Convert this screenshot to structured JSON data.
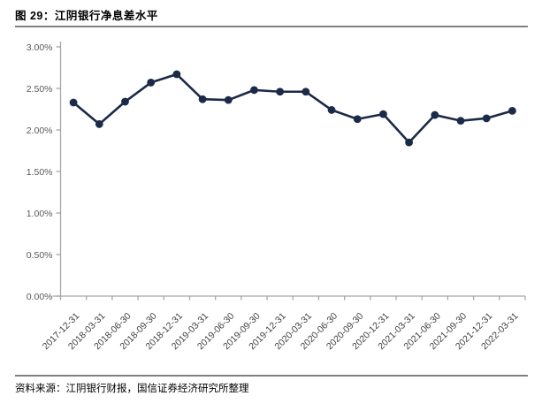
{
  "header": {
    "title": "图 29：江阴银行净息差水平"
  },
  "footer": {
    "source": "资料来源：江阴银行财报，国信证券经济研究所整理"
  },
  "chart_data": {
    "type": "line",
    "title": "江阴银行净息差水平",
    "xlabel": "",
    "ylabel": "",
    "unit": "%",
    "categories": [
      "2017-12-31",
      "2018-03-31",
      "2018-06-30",
      "2018-09-30",
      "2018-12-31",
      "2019-03-31",
      "2019-06-30",
      "2019-09-30",
      "2019-12-31",
      "2020-03-31",
      "2020-06-30",
      "2020-09-30",
      "2020-12-31",
      "2021-03-31",
      "2021-06-30",
      "2021-09-30",
      "2021-12-31",
      "2022-03-31"
    ],
    "series": [
      {
        "name": "净息差",
        "values": [
          2.33,
          2.07,
          2.34,
          2.57,
          2.67,
          2.37,
          2.36,
          2.48,
          2.46,
          2.46,
          2.24,
          2.13,
          2.19,
          1.85,
          2.18,
          2.11,
          2.14,
          2.23
        ]
      }
    ],
    "ylim": [
      0,
      3
    ],
    "y_ticks": [
      {
        "value": 0.0,
        "label": "0.00%"
      },
      {
        "value": 0.5,
        "label": "0.50%"
      },
      {
        "value": 1.0,
        "label": "1.00%"
      },
      {
        "value": 1.5,
        "label": "1.50%"
      },
      {
        "value": 2.0,
        "label": "2.00%"
      },
      {
        "value": 2.5,
        "label": "2.50%"
      },
      {
        "value": 3.0,
        "label": "3.00%"
      }
    ],
    "grid": false,
    "legend": [],
    "legend_position": "none",
    "marker": "circle",
    "colors": {
      "line": "#1b2a47",
      "marker": "#1b2a47",
      "axis": "#a6a6a6",
      "y_tick_label": "#595959",
      "x_tick_label": "#404040",
      "separator": "#808080",
      "title_text": "#000000"
    }
  }
}
